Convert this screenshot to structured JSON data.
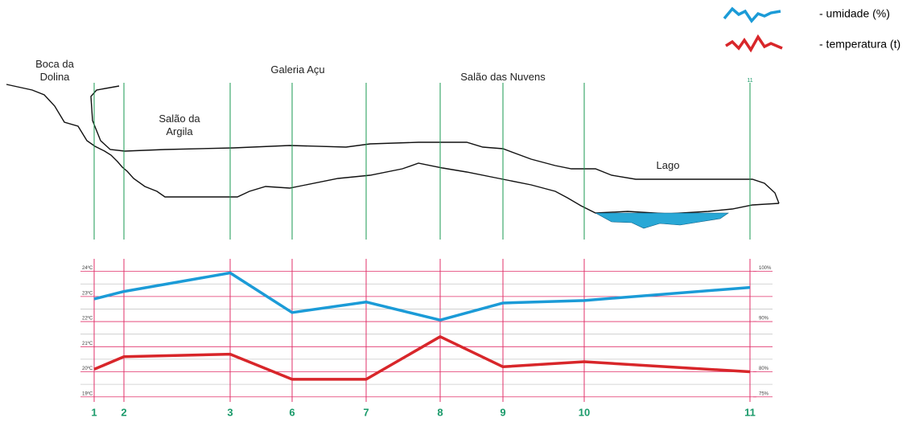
{
  "chart_data": {
    "type": "line",
    "annotations": [
      "Boca da Dolina",
      "Salão da Argila",
      "Galeria Açu",
      "Salão das Nuvens",
      "Lago"
    ],
    "categories": [
      "1",
      "2",
      "3",
      "6",
      "7",
      "8",
      "9",
      "10",
      "11"
    ],
    "series": [
      {
        "name": "- umidade (%)",
        "color": "#1b9bd7",
        "axis": "y2",
        "values": [
          94.5,
          96.0,
          99.7,
          91.8,
          93.9,
          90.3,
          93.7,
          94.2,
          96.8
        ]
      },
      {
        "name": "- temperatura (t)",
        "color": "#d8262a",
        "values": [
          20.1,
          20.6,
          20.7,
          19.7,
          19.7,
          21.4,
          20.2,
          20.4,
          20.0
        ]
      }
    ],
    "ylim": [
      18.8,
      24.5
    ],
    "yticks": [
      {
        "value": 19,
        "label": "19ºC"
      },
      {
        "value": 20,
        "label": "20ºC"
      },
      {
        "value": 21,
        "label": "21ºC"
      },
      {
        "value": 22,
        "label": "22ºC"
      },
      {
        "value": 23,
        "label": "23ºC"
      },
      {
        "value": 24,
        "label": "24ºC"
      }
    ],
    "minor_yticks": [
      19.5,
      20.5,
      21.5,
      22.5,
      23.5
    ],
    "y2lim": [
      74,
      102.5
    ],
    "y2ticks": [
      {
        "value": 75,
        "label": "75%"
      },
      {
        "value": 80,
        "label": "80%"
      },
      {
        "value": 90,
        "label": "90%"
      },
      {
        "value": 100,
        "label": "100%"
      }
    ],
    "grid": true
  }
}
